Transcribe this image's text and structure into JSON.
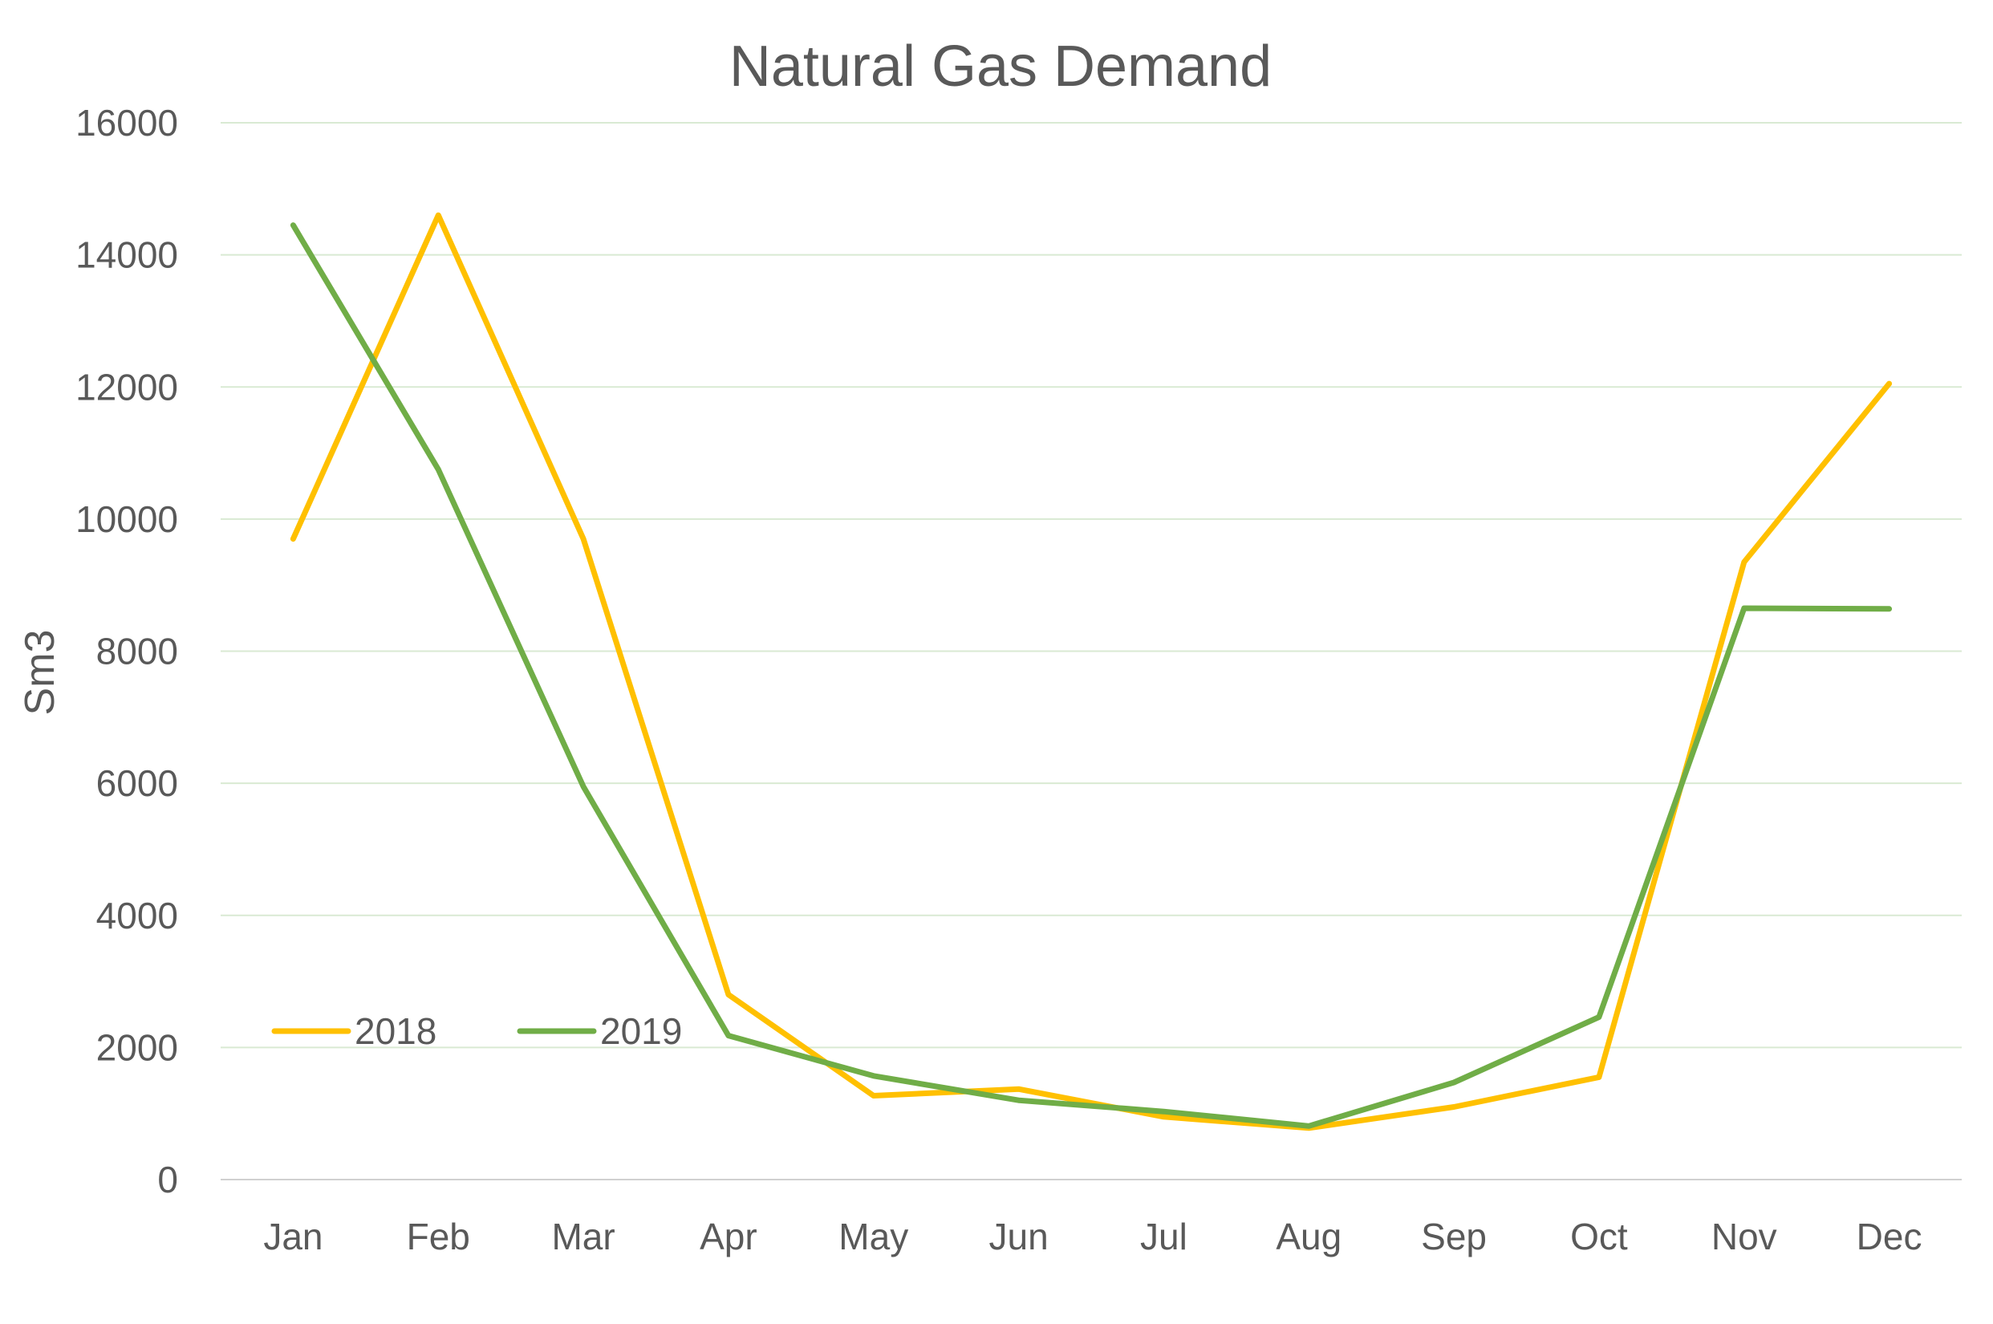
{
  "chart_data": {
    "type": "line",
    "title": "Natural Gas Demand",
    "xlabel": "",
    "ylabel": "Sm3",
    "categories": [
      "Jan",
      "Feb",
      "Mar",
      "Apr",
      "May",
      "Jun",
      "Jul",
      "Aug",
      "Sep",
      "Oct",
      "Nov",
      "Dec"
    ],
    "ylim": [
      0,
      16000
    ],
    "yticks": [
      "0",
      "2000",
      "4000",
      "6000",
      "8000",
      "10000",
      "12000",
      "14000",
      "16000"
    ],
    "grid": true,
    "legend_position": "lower-left",
    "series": [
      {
        "name": "2018",
        "color": "#FFC000",
        "values": [
          9700,
          14600,
          9700,
          2800,
          1270,
          1370,
          950,
          780,
          1100,
          1550,
          9350,
          12050
        ]
      },
      {
        "name": "2019",
        "color": "#70AD47",
        "values": [
          14450,
          10750,
          5950,
          2180,
          1570,
          1200,
          1030,
          810,
          1470,
          2460,
          8650,
          8640
        ]
      }
    ]
  }
}
